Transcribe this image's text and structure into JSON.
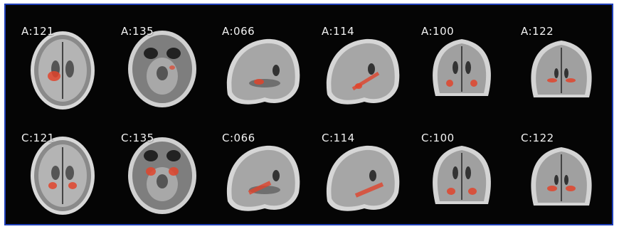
{
  "figure": {
    "rows": [
      {
        "tiles": [
          {
            "label": "A:121",
            "view": "axial-upper"
          },
          {
            "label": "A:135",
            "view": "axial-lower"
          },
          {
            "label": "A:066",
            "view": "sagittal"
          },
          {
            "label": "A:114",
            "view": "sagittal"
          },
          {
            "label": "A:100",
            "view": "coronal"
          },
          {
            "label": "A:122",
            "view": "coronal"
          }
        ]
      },
      {
        "tiles": [
          {
            "label": "C:121",
            "view": "axial-upper"
          },
          {
            "label": "C:135",
            "view": "axial-lower"
          },
          {
            "label": "C:066",
            "view": "sagittal"
          },
          {
            "label": "C:114",
            "view": "sagittal"
          },
          {
            "label": "C:100",
            "view": "coronal"
          },
          {
            "label": "C:122",
            "view": "coronal"
          }
        ]
      }
    ],
    "colors": {
      "border": "#1f3fb8",
      "background": "#050505",
      "highlight": "#e0442c",
      "label": "#f2f2f2"
    }
  }
}
